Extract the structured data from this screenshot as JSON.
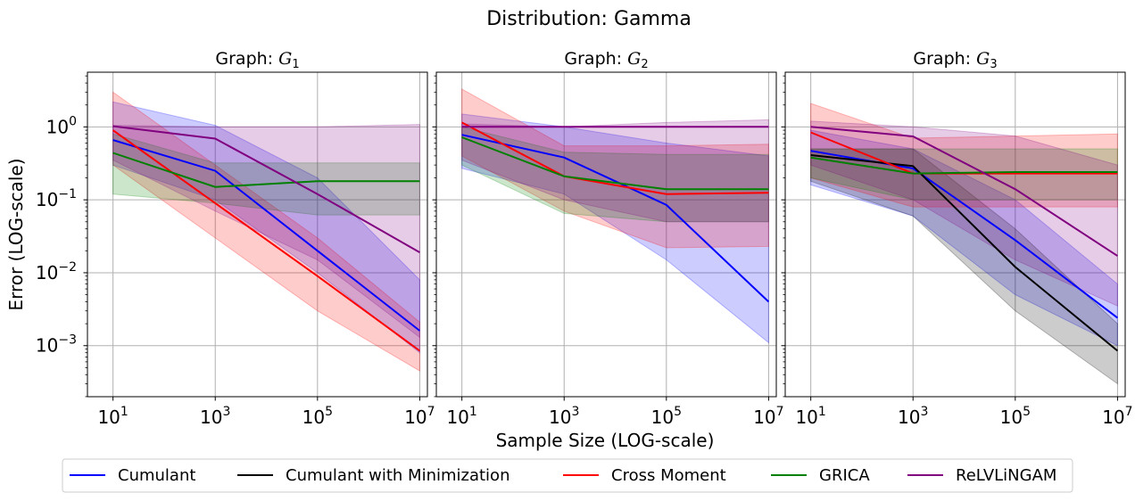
{
  "figure": {
    "suptitle": "Distribution: Gamma",
    "xlabel": "Sample Size (LOG-scale)",
    "ylabel": "Error (LOG-scale)"
  },
  "legend": {
    "placement": "bottom-center",
    "items": [
      {
        "label": "Cumulant",
        "color": "#0000ff"
      },
      {
        "label": "Cumulant with Minimization",
        "color": "#000000"
      },
      {
        "label": "Cross Moment",
        "color": "#ff0000"
      },
      {
        "label": "GRICA",
        "color": "#008000"
      },
      {
        "label": "ReLVLiNGAM",
        "color": "#800080"
      }
    ]
  },
  "chart_data": [
    {
      "type": "line",
      "title": "Graph: G1",
      "title_prefix": "Graph: ",
      "title_symbol": "G",
      "title_sub": "1",
      "x": [
        10,
        1000,
        100000,
        10000000
      ],
      "xscale": "log",
      "yscale": "log",
      "xlim": [
        0.5,
        7.15
      ],
      "ylim": [
        -3.7,
        0.75
      ],
      "x_ticks": [
        10,
        1000,
        100000,
        10000000
      ],
      "y_ticks": [
        0.001,
        0.01,
        0.1,
        1
      ],
      "grid": true,
      "series": [
        {
          "name": "Cumulant",
          "color": "#0000ff",
          "values": [
            0.66,
            0.25,
            0.02,
            0.0016
          ],
          "lower": [
            0.3,
            0.1,
            0.01,
            0.0008
          ],
          "upper": [
            2.2,
            1.05,
            0.2,
            0.008
          ]
        },
        {
          "name": "Cross Moment",
          "color": "#ff0000",
          "values": [
            0.9,
            0.09,
            0.009,
            0.00085
          ],
          "lower": [
            0.3,
            0.03,
            0.003,
            0.00045
          ],
          "upper": [
            3.0,
            0.3,
            0.03,
            0.0021
          ]
        },
        {
          "name": "GRICA",
          "color": "#008000",
          "values": [
            0.44,
            0.15,
            0.18,
            0.18
          ],
          "lower": [
            0.12,
            0.09,
            0.062,
            0.062
          ],
          "upper": [
            0.8,
            0.32,
            0.32,
            0.32
          ]
        },
        {
          "name": "ReLVLiNGAM",
          "color": "#800080",
          "values": [
            1.02,
            0.69,
            0.12,
            0.019
          ],
          "lower": [
            0.35,
            0.07,
            0.015,
            0.0013
          ],
          "upper": [
            1.05,
            1.0,
            1.0,
            1.08
          ]
        }
      ]
    },
    {
      "type": "line",
      "title": "Graph: G2",
      "title_prefix": "Graph: ",
      "title_symbol": "G",
      "title_sub": "2",
      "x": [
        10,
        1000,
        100000,
        10000000
      ],
      "xscale": "log",
      "yscale": "log",
      "xlim": [
        0.5,
        7.15
      ],
      "ylim": [
        -3.7,
        0.75
      ],
      "x_ticks": [
        10,
        1000,
        100000,
        10000000
      ],
      "y_ticks": [
        0.001,
        0.01,
        0.1,
        1
      ],
      "grid": true,
      "series": [
        {
          "name": "Cumulant",
          "color": "#0000ff",
          "values": [
            0.78,
            0.38,
            0.085,
            0.004
          ],
          "lower": [
            0.27,
            0.12,
            0.015,
            0.0011
          ],
          "upper": [
            1.5,
            1.0,
            0.6,
            0.4
          ]
        },
        {
          "name": "Cross Moment",
          "color": "#ff0000",
          "values": [
            1.15,
            0.21,
            0.12,
            0.125
          ],
          "lower": [
            0.4,
            0.07,
            0.022,
            0.023
          ],
          "upper": [
            3.3,
            0.55,
            0.55,
            0.58
          ]
        },
        {
          "name": "GRICA",
          "color": "#008000",
          "values": [
            0.72,
            0.21,
            0.14,
            0.14
          ],
          "lower": [
            0.3,
            0.065,
            0.05,
            0.05
          ],
          "upper": [
            1.0,
            0.45,
            0.42,
            0.42
          ]
        },
        {
          "name": "ReLVLiNGAM",
          "color": "#800080",
          "values": [
            1.0,
            1.0,
            1.0,
            1.0
          ],
          "lower": [
            0.35,
            0.1,
            0.05,
            0.05
          ],
          "upper": [
            1.1,
            1.0,
            1.15,
            1.25
          ]
        }
      ]
    },
    {
      "type": "line",
      "title": "Graph: G3",
      "title_prefix": "Graph: ",
      "title_symbol": "G",
      "title_sub": "3",
      "x": [
        10,
        1000,
        100000,
        10000000
      ],
      "xscale": "log",
      "yscale": "log",
      "xlim": [
        0.5,
        7.15
      ],
      "ylim": [
        -3.7,
        0.75
      ],
      "x_ticks": [
        10,
        1000,
        100000,
        10000000
      ],
      "y_ticks": [
        0.001,
        0.01,
        0.1,
        1
      ],
      "grid": true,
      "series": [
        {
          "name": "Cumulant",
          "color": "#0000ff",
          "values": [
            0.47,
            0.27,
            0.028,
            0.0024
          ],
          "lower": [
            0.16,
            0.06,
            0.005,
            0.001
          ],
          "upper": [
            0.9,
            0.5,
            0.1,
            0.007
          ]
        },
        {
          "name": "Cumulant with Minimization",
          "color": "#000000",
          "values": [
            0.41,
            0.29,
            0.012,
            0.00085
          ],
          "lower": [
            0.18,
            0.06,
            0.003,
            0.0003
          ],
          "upper": [
            0.5,
            0.5,
            0.04,
            0.002
          ]
        },
        {
          "name": "Cross Moment",
          "color": "#ff0000",
          "values": [
            0.84,
            0.23,
            0.23,
            0.23
          ],
          "lower": [
            0.2,
            0.08,
            0.08,
            0.08
          ],
          "upper": [
            2.1,
            0.7,
            0.75,
            0.8
          ]
        },
        {
          "name": "GRICA",
          "color": "#008000",
          "values": [
            0.38,
            0.23,
            0.24,
            0.24
          ],
          "lower": [
            0.2,
            0.1,
            0.1,
            0.1
          ],
          "upper": [
            0.5,
            0.5,
            0.5,
            0.5
          ]
        },
        {
          "name": "ReLVLiNGAM",
          "color": "#800080",
          "values": [
            1.0,
            0.74,
            0.14,
            0.017
          ],
          "lower": [
            0.3,
            0.1,
            0.015,
            0.0035
          ],
          "upper": [
            1.2,
            1.0,
            0.75,
            0.3
          ]
        }
      ]
    }
  ]
}
